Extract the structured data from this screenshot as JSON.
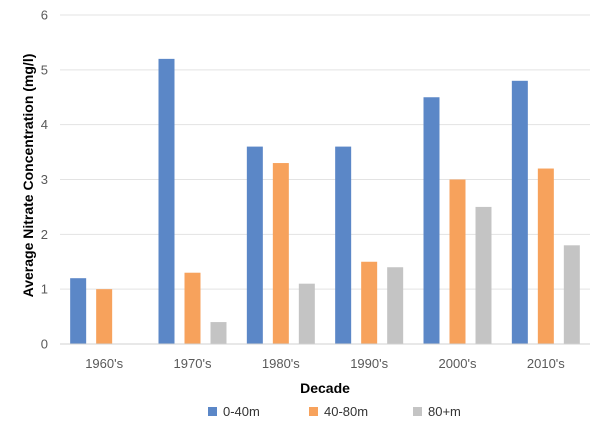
{
  "chart_data": {
    "type": "bar",
    "title": "",
    "xlabel": "Decade",
    "ylabel": "Average Nitrate Concentration (mg/l)",
    "ylim": [
      0,
      6
    ],
    "yticks": [
      "0",
      "1",
      "2",
      "3",
      "4",
      "5",
      "6"
    ],
    "grid": true,
    "legend_position": "bottom",
    "categories": [
      "1960's",
      "1970's",
      "1980's",
      "1990's",
      "2000's",
      "2010's"
    ],
    "series": [
      {
        "name": "0-40m",
        "color": "#5B87C7",
        "values": [
          1.2,
          5.2,
          3.6,
          3.6,
          4.5,
          4.8
        ]
      },
      {
        "name": "40-80m",
        "color": "#F7A25C",
        "values": [
          1.0,
          1.3,
          3.3,
          1.5,
          3.0,
          3.2
        ]
      },
      {
        "name": "80+m",
        "color": "#C4C4C4",
        "values": [
          null,
          0.4,
          1.1,
          1.4,
          2.5,
          1.8
        ]
      }
    ],
    "grid_color": "#E3E3E3",
    "axis_color": "#D0D0D0"
  }
}
